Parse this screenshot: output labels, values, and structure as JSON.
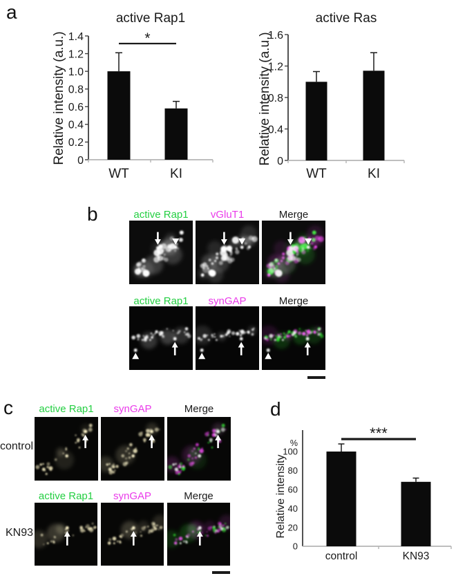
{
  "accent_colors": {
    "green": "#24cf42",
    "magenta": "#ea3bea",
    "dark": "#1a1a1a"
  },
  "panels": {
    "a": {
      "label": "a"
    },
    "b": {
      "label": "b",
      "rows": [
        {
          "image_titles": [
            {
              "text": "active Rap1",
              "color": "green"
            },
            {
              "text": "vGluT1",
              "color": "magenta"
            },
            {
              "text": "Merge",
              "color": "dark"
            }
          ],
          "arrows": [
            {
              "kind": "arrow",
              "dir": "down",
              "x": 0.45,
              "y": 0.38,
              "len": 0.2
            },
            {
              "kind": "head",
              "dir": "down",
              "x": 0.73,
              "y": 0.33
            }
          ]
        },
        {
          "image_titles": [
            {
              "text": "active Rap1",
              "color": "green"
            },
            {
              "text": "synGAP",
              "color": "magenta"
            },
            {
              "text": "Merge",
              "color": "dark"
            }
          ],
          "arrows": [
            {
              "kind": "head",
              "dir": "up",
              "x": 0.1,
              "y": 0.78
            },
            {
              "kind": "arrow",
              "dir": "up",
              "x": 0.72,
              "y": 0.56,
              "len": 0.21
            }
          ]
        }
      ],
      "has_scale_bar": true
    },
    "c": {
      "label": "c",
      "rows": [
        {
          "row_label": "control",
          "image_titles": [
            {
              "text": "active Rap1",
              "color": "green"
            },
            {
              "text": "synGAP",
              "color": "magenta"
            },
            {
              "text": "Merge",
              "color": "dark"
            }
          ],
          "arrows": [
            {
              "kind": "arrow",
              "dir": "up",
              "x": 0.8,
              "y": 0.28,
              "len": 0.21
            }
          ]
        },
        {
          "row_label": "KN93",
          "image_titles": [
            {
              "text": "active Rap1",
              "color": "green"
            },
            {
              "text": "synGAP",
              "color": "magenta"
            },
            {
              "text": "Merge",
              "color": "dark"
            }
          ],
          "arrows": [
            {
              "kind": "arrow",
              "dir": "up",
              "x": 0.52,
              "y": 0.45,
              "len": 0.23
            }
          ]
        }
      ],
      "has_scale_bar": true
    },
    "d": {
      "label": "d"
    }
  },
  "chart_data": [
    {
      "type": "bar",
      "panel": "a",
      "title": "active Rap1",
      "ylabel": "Relative intensity (a.u.)",
      "categories": [
        "WT",
        "KI"
      ],
      "values": [
        1.0,
        0.58
      ],
      "errors_up": [
        0.21,
        0.08
      ],
      "ytick_labels": [
        "1.4",
        "1.2",
        "1.0",
        "0.8",
        "0.6",
        "0.4",
        "0.2",
        "0"
      ],
      "ytick_values": [
        1.4,
        1.2,
        1.0,
        0.8,
        0.6,
        0.4,
        0.2,
        0
      ],
      "ylim": [
        0,
        1.4
      ],
      "bar_color": "#0b0b0b",
      "grid": false,
      "significance": {
        "label": "*",
        "between": [
          "WT",
          "KI"
        ]
      }
    },
    {
      "type": "bar",
      "panel": "a",
      "title": "active Ras",
      "ylabel": "Relative intensity (a.u.)",
      "categories": [
        "WT",
        "KI"
      ],
      "values": [
        1.0,
        1.14
      ],
      "errors_up": [
        0.13,
        0.23
      ],
      "ytick_labels": [
        "1.6",
        "1.2",
        "0.8",
        "0.4",
        "0"
      ],
      "ytick_values": [
        1.6,
        1.2,
        0.8,
        0.4,
        0
      ],
      "ylim": [
        0,
        1.6
      ],
      "bar_color": "#0b0b0b",
      "grid": false,
      "significance": null
    },
    {
      "type": "bar",
      "panel": "d",
      "title": "",
      "ylabel": "Relative intensity",
      "y_unit": "%",
      "categories": [
        "control",
        "KN93"
      ],
      "values": [
        100,
        68
      ],
      "errors_up": [
        8,
        4
      ],
      "ytick_labels": [
        "100",
        "80",
        "60",
        "40",
        "20",
        "0"
      ],
      "ytick_values": [
        100,
        80,
        60,
        40,
        20,
        0
      ],
      "ylim": [
        0,
        100
      ],
      "bar_color": "#0b0b0b",
      "grid": false,
      "significance": {
        "label": "***",
        "between": [
          "control",
          "KN93"
        ]
      }
    }
  ]
}
